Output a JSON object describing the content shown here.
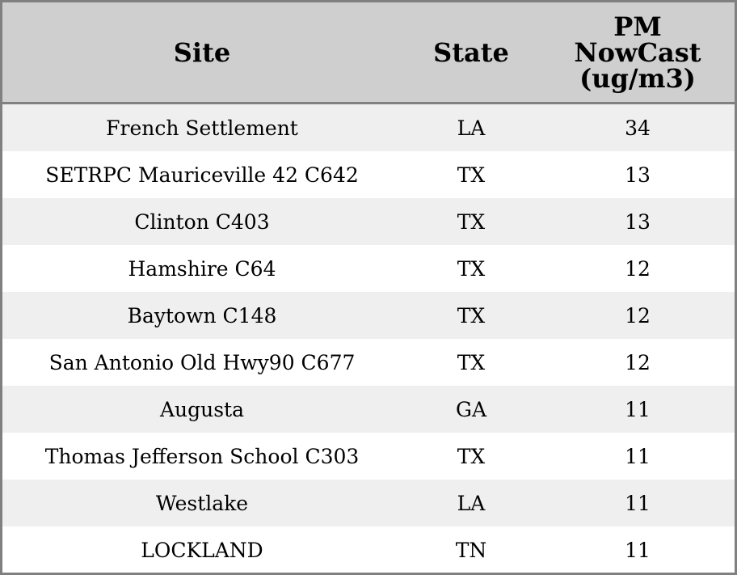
{
  "chart_data": {
    "type": "table",
    "columns": [
      "Site",
      "State",
      "PM\nNowCast\n(ug/m3)"
    ],
    "rows": [
      [
        "French Settlement",
        "LA",
        "34"
      ],
      [
        "SETRPC Mauriceville 42 C642",
        "TX",
        "13"
      ],
      [
        "Clinton C403",
        "TX",
        "13"
      ],
      [
        "Hamshire C64",
        "TX",
        "12"
      ],
      [
        "Baytown C148",
        "TX",
        "12"
      ],
      [
        "San Antonio Old Hwy90 C677",
        "TX",
        "12"
      ],
      [
        "Augusta",
        "GA",
        "11"
      ],
      [
        "Thomas Jefferson School C303",
        "TX",
        "11"
      ],
      [
        "Westlake",
        "LA",
        "11"
      ],
      [
        "LOCKLAND",
        "TN",
        "11"
      ]
    ]
  },
  "colors": {
    "header_bg": "#cfcfcf",
    "row_alt_bg": "#efefef",
    "row_bg": "#ffffff",
    "border": "#808080"
  }
}
